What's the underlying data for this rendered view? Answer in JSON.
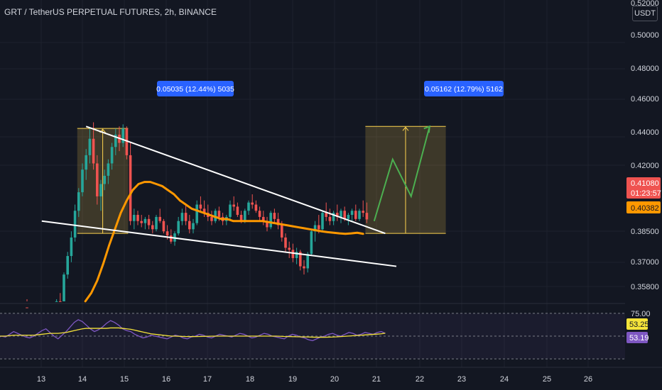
{
  "header": {
    "title": "GRT / TetherUS PERPETUAL FUTURES, 2h, BINANCE",
    "currency": "USDT"
  },
  "chart_data": {
    "type": "candlestick",
    "price_axis": {
      "ticks": [
        "0.50000",
        "0.48000",
        "0.46000",
        "0.44000",
        "0.42000",
        "0.38500",
        "0.37000",
        "0.35800"
      ],
      "top_tick_partial": "0.52000",
      "last_price_label": "0.41080",
      "countdown_label": "01:23:57",
      "ma_label": "0.40382"
    },
    "time_axis": {
      "ticks": [
        "13",
        "14",
        "15",
        "16",
        "17",
        "18",
        "19",
        "20",
        "21",
        "22",
        "23",
        "24",
        "25",
        "26"
      ]
    },
    "candles": [
      [
        0.352,
        0.3555,
        0.35,
        0.354
      ],
      [
        0.354,
        0.36,
        0.353,
        0.359
      ],
      [
        0.359,
        0.358,
        0.354,
        0.356
      ],
      [
        0.356,
        0.361,
        0.355,
        0.36
      ],
      [
        0.36,
        0.37,
        0.359,
        0.368
      ],
      [
        0.368,
        0.372,
        0.363,
        0.365
      ],
      [
        0.365,
        0.368,
        0.36,
        0.362
      ],
      [
        0.362,
        0.364,
        0.356,
        0.358
      ],
      [
        0.358,
        0.362,
        0.356,
        0.361
      ],
      [
        0.361,
        0.368,
        0.36,
        0.367
      ],
      [
        0.367,
        0.37,
        0.363,
        0.364
      ],
      [
        0.364,
        0.366,
        0.36,
        0.362
      ],
      [
        0.362,
        0.366,
        0.36,
        0.365
      ],
      [
        0.365,
        0.372,
        0.364,
        0.371
      ],
      [
        0.371,
        0.375,
        0.368,
        0.37
      ],
      [
        0.37,
        0.385,
        0.369,
        0.384
      ],
      [
        0.384,
        0.395,
        0.382,
        0.393
      ],
      [
        0.393,
        0.405,
        0.39,
        0.402
      ],
      [
        0.402,
        0.418,
        0.4,
        0.415
      ],
      [
        0.415,
        0.426,
        0.412,
        0.424
      ],
      [
        0.424,
        0.438,
        0.422,
        0.435
      ],
      [
        0.435,
        0.445,
        0.43,
        0.442
      ],
      [
        0.442,
        0.455,
        0.438,
        0.45
      ],
      [
        0.45,
        0.458,
        0.435,
        0.438
      ],
      [
        0.438,
        0.442,
        0.418,
        0.422
      ],
      [
        0.422,
        0.43,
        0.415,
        0.428
      ],
      [
        0.428,
        0.435,
        0.425,
        0.432
      ],
      [
        0.432,
        0.44,
        0.428,
        0.438
      ],
      [
        0.438,
        0.448,
        0.435,
        0.446
      ],
      [
        0.446,
        0.455,
        0.442,
        0.452
      ],
      [
        0.452,
        0.456,
        0.444,
        0.448
      ],
      [
        0.448,
        0.457,
        0.446,
        0.455
      ],
      [
        0.455,
        0.456,
        0.44,
        0.442
      ],
      [
        0.442,
        0.448,
        0.408,
        0.41
      ],
      [
        0.41,
        0.416,
        0.406,
        0.413
      ],
      [
        0.413,
        0.415,
        0.408,
        0.41
      ],
      [
        0.41,
        0.413,
        0.407,
        0.409
      ],
      [
        0.409,
        0.412,
        0.406,
        0.411
      ],
      [
        0.411,
        0.413,
        0.406,
        0.408
      ],
      [
        0.408,
        0.41,
        0.404,
        0.406
      ],
      [
        0.406,
        0.413,
        0.405,
        0.412
      ],
      [
        0.412,
        0.416,
        0.409,
        0.41
      ],
      [
        0.41,
        0.411,
        0.404,
        0.405
      ],
      [
        0.405,
        0.408,
        0.401,
        0.403
      ],
      [
        0.403,
        0.406,
        0.399,
        0.4
      ],
      [
        0.4,
        0.405,
        0.398,
        0.404
      ],
      [
        0.404,
        0.412,
        0.403,
        0.41
      ],
      [
        0.41,
        0.416,
        0.408,
        0.414
      ],
      [
        0.414,
        0.418,
        0.408,
        0.41
      ],
      [
        0.41,
        0.413,
        0.404,
        0.406
      ],
      [
        0.406,
        0.411,
        0.404,
        0.409
      ],
      [
        0.409,
        0.42,
        0.408,
        0.418
      ],
      [
        0.418,
        0.422,
        0.414,
        0.416
      ],
      [
        0.416,
        0.42,
        0.412,
        0.414
      ],
      [
        0.414,
        0.418,
        0.41,
        0.412
      ],
      [
        0.412,
        0.415,
        0.408,
        0.41
      ],
      [
        0.41,
        0.416,
        0.409,
        0.415
      ],
      [
        0.415,
        0.417,
        0.41,
        0.412
      ],
      [
        0.412,
        0.414,
        0.408,
        0.41
      ],
      [
        0.41,
        0.413,
        0.408,
        0.412
      ],
      [
        0.412,
        0.42,
        0.411,
        0.418
      ],
      [
        0.418,
        0.422,
        0.415,
        0.417
      ],
      [
        0.417,
        0.419,
        0.412,
        0.413
      ],
      [
        0.413,
        0.415,
        0.409,
        0.41
      ],
      [
        0.41,
        0.416,
        0.409,
        0.415
      ],
      [
        0.415,
        0.42,
        0.413,
        0.419
      ],
      [
        0.419,
        0.423,
        0.416,
        0.418
      ],
      [
        0.418,
        0.42,
        0.414,
        0.415
      ],
      [
        0.415,
        0.417,
        0.41,
        0.412
      ],
      [
        0.412,
        0.415,
        0.408,
        0.41
      ],
      [
        0.41,
        0.412,
        0.405,
        0.407
      ],
      [
        0.407,
        0.415,
        0.406,
        0.414
      ],
      [
        0.414,
        0.416,
        0.409,
        0.411
      ],
      [
        0.411,
        0.414,
        0.406,
        0.408
      ],
      [
        0.408,
        0.41,
        0.4,
        0.402
      ],
      [
        0.402,
        0.404,
        0.395,
        0.397
      ],
      [
        0.397,
        0.4,
        0.392,
        0.396
      ],
      [
        0.396,
        0.399,
        0.39,
        0.392
      ],
      [
        0.392,
        0.397,
        0.389,
        0.395
      ],
      [
        0.395,
        0.396,
        0.386,
        0.388
      ],
      [
        0.388,
        0.391,
        0.384,
        0.387
      ],
      [
        0.387,
        0.395,
        0.385,
        0.394
      ],
      [
        0.394,
        0.406,
        0.393,
        0.405
      ],
      [
        0.405,
        0.41,
        0.4,
        0.408
      ],
      [
        0.408,
        0.413,
        0.404,
        0.406
      ],
      [
        0.406,
        0.415,
        0.405,
        0.414
      ],
      [
        0.414,
        0.419,
        0.41,
        0.412
      ],
      [
        0.412,
        0.416,
        0.408,
        0.41
      ],
      [
        0.41,
        0.415,
        0.408,
        0.414
      ],
      [
        0.414,
        0.418,
        0.41,
        0.412
      ],
      [
        0.412,
        0.416,
        0.409,
        0.415
      ],
      [
        0.415,
        0.417,
        0.41,
        0.411
      ],
      [
        0.411,
        0.414,
        0.408,
        0.413
      ],
      [
        0.413,
        0.416,
        0.41,
        0.415
      ],
      [
        0.415,
        0.418,
        0.41,
        0.411
      ],
      [
        0.411,
        0.416,
        0.41,
        0.415
      ],
      [
        0.415,
        0.42,
        0.412,
        0.414
      ],
      [
        0.414,
        0.419,
        0.409,
        0.4108
      ]
    ],
    "ma_line": [
      0.35,
      0.35,
      0.351,
      0.352,
      0.354,
      0.356,
      0.357,
      0.358,
      0.36,
      0.362,
      0.364,
      0.366,
      0.368,
      0.371,
      0.375,
      0.381,
      0.389,
      0.398,
      0.406,
      0.414,
      0.42,
      0.425,
      0.428,
      0.429,
      0.429,
      0.428,
      0.427,
      0.425,
      0.423,
      0.42,
      0.418,
      0.416,
      0.415,
      0.414,
      0.413,
      0.412,
      0.411,
      0.411,
      0.41,
      0.41,
      0.41,
      0.41,
      0.41,
      0.41,
      0.4095,
      0.409,
      0.4085,
      0.408,
      0.4075,
      0.407,
      0.4065,
      0.406,
      0.4055,
      0.405,
      0.4046,
      0.4043,
      0.404,
      0.4038,
      0.404,
      0.4043,
      0.4038
    ],
    "rsi": {
      "upper_label": "75.00",
      "value_label": "53.25",
      "ma_value_label": "53.19",
      "values": [
        48,
        50,
        49,
        52,
        55,
        53,
        51,
        49,
        48,
        50,
        53,
        56,
        58,
        54,
        50,
        47,
        51,
        55,
        60,
        65,
        68,
        66,
        62,
        58,
        55,
        57,
        60,
        64,
        67,
        65,
        62,
        58,
        56,
        55,
        52,
        50,
        48,
        49,
        51,
        50,
        49,
        48,
        47,
        49,
        51,
        50,
        48,
        47,
        49,
        50,
        52,
        51,
        49,
        48,
        50,
        52,
        51,
        50,
        49,
        51,
        53,
        52,
        50,
        48,
        49,
        51,
        53,
        52,
        50,
        49,
        48,
        47,
        50,
        52,
        51,
        49,
        48,
        46,
        45,
        47,
        49,
        50,
        52,
        53,
        51,
        50,
        52,
        54,
        53,
        51,
        52,
        54,
        53,
        52,
        54,
        55,
        53
      ],
      "ma_values": [
        50,
        50,
        50,
        50.5,
        51,
        51,
        51,
        51,
        51,
        51,
        51.5,
        52,
        52.5,
        53,
        53,
        53,
        53.5,
        54,
        55,
        56,
        57,
        58,
        58.5,
        58.5,
        58.5,
        58.5,
        58.5,
        58.5,
        59,
        59,
        59,
        58.5,
        58,
        57.5,
        56.5,
        55.5,
        54.5,
        53.5,
        52.5,
        52,
        51.5,
        51,
        50.5,
        50,
        50,
        49.8,
        49.6,
        49.5,
        49.5,
        49.5,
        49.6,
        49.7,
        49.8,
        49.9,
        50,
        50,
        50,
        50,
        50,
        50,
        50,
        50,
        50,
        50,
        50,
        50,
        50,
        50,
        50,
        50,
        49.8,
        49.6,
        49.5,
        49.4,
        49.3,
        49.2,
        49.1,
        49,
        48.9,
        48.8,
        48.8,
        48.8,
        48.9,
        49,
        49.2,
        49.5,
        49.8,
        50.1,
        50.4,
        50.7,
        51,
        51.3,
        51.6,
        51.9,
        52.2,
        52.5,
        53.19
      ]
    },
    "annotations": [
      {
        "label": "0.05035 (12.44%) 5035",
        "from_price": 0.404,
        "to_price": 0.455,
        "start_index": 19,
        "end_index": 32
      },
      {
        "label": "0.05162 (12.79%) 5162",
        "from_price": 0.404,
        "to_price": 0.456,
        "start_index": 97,
        "end_index": 118
      }
    ],
    "trendlines": [
      {
        "from": [
          21,
          0.456
        ],
        "to": [
          102,
          0.404
        ]
      },
      {
        "from": [
          9,
          0.41
        ],
        "to": [
          105,
          0.388
        ]
      }
    ],
    "projection": [
      [
        99,
        0.41
      ],
      [
        104,
        0.44
      ],
      [
        109,
        0.422
      ],
      [
        114,
        0.456
      ]
    ],
    "colors": {
      "background": "#131722",
      "up": "#26a69a",
      "down": "#ef5350",
      "ma": "#ff9800",
      "rsi": "#7e57c2",
      "rsi_ma": "#f5e33a",
      "annotation_label": "#2962ff",
      "projection": "#4caf50"
    }
  }
}
